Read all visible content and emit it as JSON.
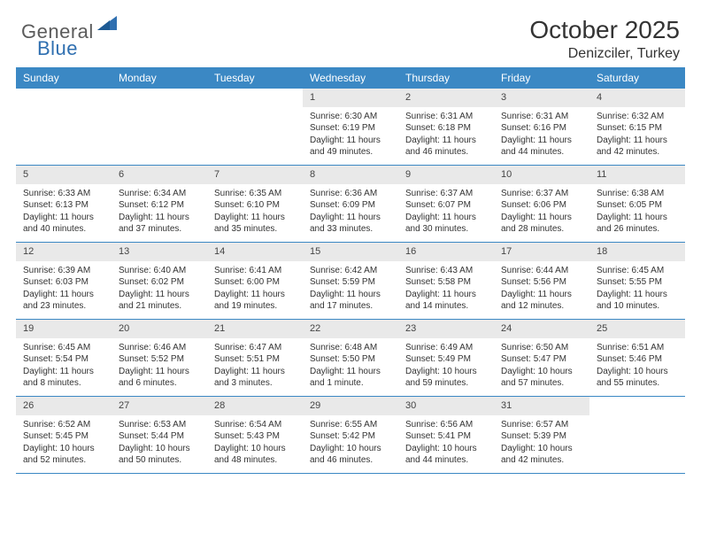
{
  "brand": {
    "part1": "General",
    "part2": "Blue"
  },
  "title": "October 2025",
  "location": "Denizciler, Turkey",
  "colors": {
    "header_bg": "#3b88c4",
    "header_text": "#ffffff",
    "daynum_bg": "#e9e9e9",
    "border": "#3b88c4",
    "text": "#333333",
    "logo_gray": "#5b5b5b",
    "logo_blue": "#2f6fb0",
    "page_bg": "#ffffff"
  },
  "day_names": [
    "Sunday",
    "Monday",
    "Tuesday",
    "Wednesday",
    "Thursday",
    "Friday",
    "Saturday"
  ],
  "first_day_column": 3,
  "days": [
    {
      "n": 1,
      "sunrise": "6:30 AM",
      "sunset": "6:19 PM",
      "daylight": "11 hours and 49 minutes."
    },
    {
      "n": 2,
      "sunrise": "6:31 AM",
      "sunset": "6:18 PM",
      "daylight": "11 hours and 46 minutes."
    },
    {
      "n": 3,
      "sunrise": "6:31 AM",
      "sunset": "6:16 PM",
      "daylight": "11 hours and 44 minutes."
    },
    {
      "n": 4,
      "sunrise": "6:32 AM",
      "sunset": "6:15 PM",
      "daylight": "11 hours and 42 minutes."
    },
    {
      "n": 5,
      "sunrise": "6:33 AM",
      "sunset": "6:13 PM",
      "daylight": "11 hours and 40 minutes."
    },
    {
      "n": 6,
      "sunrise": "6:34 AM",
      "sunset": "6:12 PM",
      "daylight": "11 hours and 37 minutes."
    },
    {
      "n": 7,
      "sunrise": "6:35 AM",
      "sunset": "6:10 PM",
      "daylight": "11 hours and 35 minutes."
    },
    {
      "n": 8,
      "sunrise": "6:36 AM",
      "sunset": "6:09 PM",
      "daylight": "11 hours and 33 minutes."
    },
    {
      "n": 9,
      "sunrise": "6:37 AM",
      "sunset": "6:07 PM",
      "daylight": "11 hours and 30 minutes."
    },
    {
      "n": 10,
      "sunrise": "6:37 AM",
      "sunset": "6:06 PM",
      "daylight": "11 hours and 28 minutes."
    },
    {
      "n": 11,
      "sunrise": "6:38 AM",
      "sunset": "6:05 PM",
      "daylight": "11 hours and 26 minutes."
    },
    {
      "n": 12,
      "sunrise": "6:39 AM",
      "sunset": "6:03 PM",
      "daylight": "11 hours and 23 minutes."
    },
    {
      "n": 13,
      "sunrise": "6:40 AM",
      "sunset": "6:02 PM",
      "daylight": "11 hours and 21 minutes."
    },
    {
      "n": 14,
      "sunrise": "6:41 AM",
      "sunset": "6:00 PM",
      "daylight": "11 hours and 19 minutes."
    },
    {
      "n": 15,
      "sunrise": "6:42 AM",
      "sunset": "5:59 PM",
      "daylight": "11 hours and 17 minutes."
    },
    {
      "n": 16,
      "sunrise": "6:43 AM",
      "sunset": "5:58 PM",
      "daylight": "11 hours and 14 minutes."
    },
    {
      "n": 17,
      "sunrise": "6:44 AM",
      "sunset": "5:56 PM",
      "daylight": "11 hours and 12 minutes."
    },
    {
      "n": 18,
      "sunrise": "6:45 AM",
      "sunset": "5:55 PM",
      "daylight": "11 hours and 10 minutes."
    },
    {
      "n": 19,
      "sunrise": "6:45 AM",
      "sunset": "5:54 PM",
      "daylight": "11 hours and 8 minutes."
    },
    {
      "n": 20,
      "sunrise": "6:46 AM",
      "sunset": "5:52 PM",
      "daylight": "11 hours and 6 minutes."
    },
    {
      "n": 21,
      "sunrise": "6:47 AM",
      "sunset": "5:51 PM",
      "daylight": "11 hours and 3 minutes."
    },
    {
      "n": 22,
      "sunrise": "6:48 AM",
      "sunset": "5:50 PM",
      "daylight": "11 hours and 1 minute."
    },
    {
      "n": 23,
      "sunrise": "6:49 AM",
      "sunset": "5:49 PM",
      "daylight": "10 hours and 59 minutes."
    },
    {
      "n": 24,
      "sunrise": "6:50 AM",
      "sunset": "5:47 PM",
      "daylight": "10 hours and 57 minutes."
    },
    {
      "n": 25,
      "sunrise": "6:51 AM",
      "sunset": "5:46 PM",
      "daylight": "10 hours and 55 minutes."
    },
    {
      "n": 26,
      "sunrise": "6:52 AM",
      "sunset": "5:45 PM",
      "daylight": "10 hours and 52 minutes."
    },
    {
      "n": 27,
      "sunrise": "6:53 AM",
      "sunset": "5:44 PM",
      "daylight": "10 hours and 50 minutes."
    },
    {
      "n": 28,
      "sunrise": "6:54 AM",
      "sunset": "5:43 PM",
      "daylight": "10 hours and 48 minutes."
    },
    {
      "n": 29,
      "sunrise": "6:55 AM",
      "sunset": "5:42 PM",
      "daylight": "10 hours and 46 minutes."
    },
    {
      "n": 30,
      "sunrise": "6:56 AM",
      "sunset": "5:41 PM",
      "daylight": "10 hours and 44 minutes."
    },
    {
      "n": 31,
      "sunrise": "6:57 AM",
      "sunset": "5:39 PM",
      "daylight": "10 hours and 42 minutes."
    }
  ],
  "labels": {
    "sunrise": "Sunrise:",
    "sunset": "Sunset:",
    "daylight": "Daylight:"
  }
}
